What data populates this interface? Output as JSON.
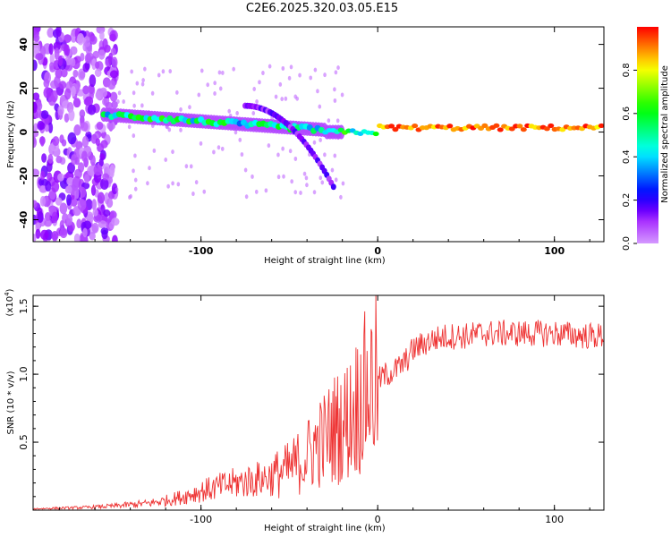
{
  "title": "C2E6.2025.320.03.05.E15",
  "chart_data": [
    {
      "type": "heatmap",
      "xlabel": "Height of straight line (km)",
      "ylabel": "Frequency (Hz)",
      "xlim": [
        -195,
        128
      ],
      "ylim": [
        -50,
        48
      ],
      "xticks": [
        -100,
        0,
        100
      ],
      "yticks": [
        40,
        20,
        0,
        -20,
        -40
      ],
      "colorbar": {
        "label": "Normalized spectral amplitude",
        "ticks": [
          "0.0",
          "0.2",
          "0.4",
          "0.6",
          "0.8"
        ],
        "range": [
          0,
          1
        ]
      },
      "features": [
        {
          "name": "noise-region",
          "x_range": [
            -195,
            -148
          ],
          "freq_range": [
            -50,
            48
          ],
          "amplitude": 0.15
        },
        {
          "name": "signal-trace",
          "start_x": -155,
          "end_x": 128,
          "start_freq": 8,
          "end_freq": 2,
          "amplitude_start": 0.4,
          "amplitude_end": 1.0
        },
        {
          "name": "sidelobe-arc",
          "x_range": [
            -75,
            -25
          ],
          "freq_range": [
            12,
            -25
          ]
        }
      ]
    },
    {
      "type": "line",
      "xlabel": "Height of straight line (km)",
      "ylabel": "SNR (10 * v/v)",
      "scale_label": "(x10",
      "scale_exp": "4",
      "scale_close": ")",
      "xlim": [
        -195,
        128
      ],
      "ylim": [
        0,
        1.58
      ],
      "xticks": [
        -100,
        0,
        100
      ],
      "yticks": [
        "0.5",
        "1.0",
        "1.5"
      ],
      "color": "#ee3333",
      "series": [
        {
          "name": "SNR",
          "x": [
            -195,
            -180,
            -165,
            -150,
            -140,
            -130,
            -120,
            -110,
            -100,
            -90,
            -80,
            -70,
            -60,
            -50,
            -45,
            -40,
            -35,
            -30,
            -25,
            -20,
            -15,
            -10,
            -5,
            0,
            5,
            10,
            15,
            20,
            30,
            40,
            50,
            60,
            70,
            80,
            90,
            100,
            110,
            120,
            128
          ],
          "values": [
            0.01,
            0.015,
            0.02,
            0.03,
            0.04,
            0.05,
            0.07,
            0.1,
            0.14,
            0.17,
            0.2,
            0.22,
            0.25,
            0.3,
            0.35,
            0.4,
            0.48,
            0.52,
            0.6,
            0.62,
            0.7,
            0.82,
            0.9,
            0.95,
            1.0,
            1.03,
            1.08,
            1.18,
            1.25,
            1.28,
            1.28,
            1.3,
            1.3,
            1.3,
            1.3,
            1.3,
            1.29,
            1.28,
            1.28
          ]
        }
      ]
    }
  ]
}
